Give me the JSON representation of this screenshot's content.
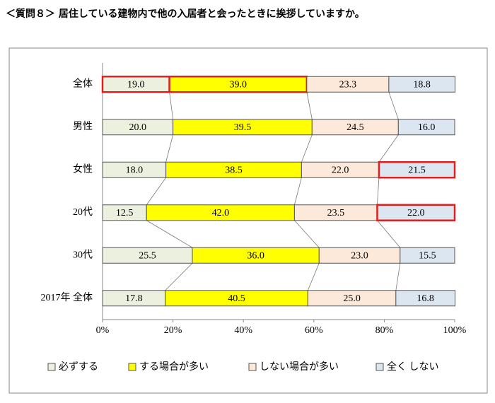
{
  "chart_data": {
    "type": "stacked-bar-horizontal",
    "title": "＜質問８＞ 居住している建物内で他の入居者と会ったときに挨拶していますか。",
    "categories": [
      "全体",
      "男性",
      "女性",
      "20代",
      "30代",
      "2017年 全体"
    ],
    "series": [
      {
        "name": "必ずする",
        "color": "#ebf1de",
        "values": [
          19.0,
          20.0,
          18.0,
          12.5,
          25.5,
          17.8
        ],
        "value_labels": [
          "19.0",
          "20.0",
          "18.0",
          "12.5",
          "25.5",
          "17.8"
        ],
        "highlighted": [
          0
        ]
      },
      {
        "name": "する場合が多い",
        "color": "#ffff00",
        "values": [
          39.0,
          39.5,
          38.5,
          42.0,
          36.0,
          40.5
        ],
        "value_labels": [
          "39.0",
          "39.5",
          "38.5",
          "42.0",
          "36.0",
          "40.5"
        ],
        "highlighted": [
          0
        ]
      },
      {
        "name": "しない場合が多い",
        "color": "#fde9d9",
        "values": [
          23.3,
          24.5,
          22.0,
          23.5,
          23.0,
          25.0
        ],
        "value_labels": [
          "23.3",
          "24.5",
          "22.0",
          "23.5",
          "23.0",
          "25.0"
        ],
        "highlighted": []
      },
      {
        "name": "全く しない",
        "color": "#dce6f1",
        "values": [
          18.8,
          16.0,
          21.5,
          22.0,
          15.5,
          16.8
        ],
        "value_labels": [
          "18.8",
          "16.0",
          "21.5",
          "22.0",
          "15.5",
          "16.8"
        ],
        "highlighted": [
          2,
          3
        ]
      }
    ],
    "highlight_color": "#e02020",
    "xlim": [
      0,
      100
    ],
    "xticks": [
      {
        "value": 0,
        "label": "0%"
      },
      {
        "value": 20,
        "label": "20%"
      },
      {
        "value": 40,
        "label": "40%"
      },
      {
        "value": 60,
        "label": "60%"
      },
      {
        "value": 80,
        "label": "80%"
      },
      {
        "value": 100,
        "label": "100%"
      }
    ],
    "series_lines": true,
    "legend": "bottom"
  }
}
